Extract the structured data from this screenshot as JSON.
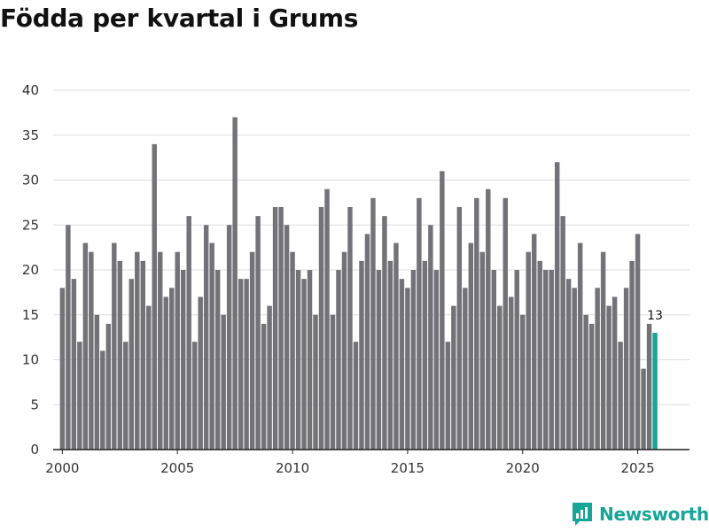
{
  "title": "Födda per kvartal i Grums",
  "brand": {
    "name": "Newsworthy",
    "icon": "newsworthy-logo-icon",
    "color": "#16a596"
  },
  "colors": {
    "bar": "#737278",
    "highlight": "#16a596",
    "grid": "#dddddd",
    "axis": "#222222"
  },
  "chart_data": {
    "type": "bar",
    "title": "Födda per kvartal i Grums",
    "xlabel": "",
    "ylabel": "",
    "x_start": 2000,
    "periods_per_year": 4,
    "xlim": [
      1999.6,
      2027.25
    ],
    "xticks": [
      2000,
      2005,
      2010,
      2015,
      2020,
      2025
    ],
    "ylim": [
      0,
      40
    ],
    "yticks": [
      0,
      5,
      10,
      15,
      20,
      25,
      30,
      35,
      40
    ],
    "grid": true,
    "legend": "none",
    "values": [
      18,
      25,
      19,
      12,
      23,
      22,
      15,
      11,
      14,
      23,
      21,
      12,
      19,
      22,
      21,
      16,
      34,
      22,
      17,
      18,
      22,
      20,
      26,
      12,
      17,
      25,
      23,
      20,
      15,
      25,
      37,
      19,
      19,
      22,
      26,
      14,
      16,
      27,
      27,
      25,
      22,
      20,
      19,
      20,
      15,
      27,
      29,
      15,
      20,
      22,
      27,
      12,
      21,
      24,
      28,
      20,
      26,
      21,
      23,
      19,
      18,
      20,
      28,
      21,
      25,
      20,
      31,
      12,
      16,
      27,
      18,
      23,
      28,
      22,
      29,
      20,
      16,
      28,
      17,
      20,
      15,
      22,
      24,
      21,
      20,
      20,
      32,
      26,
      19,
      18,
      23,
      15,
      14,
      18,
      22,
      16,
      17,
      12,
      18,
      21,
      24,
      9,
      14,
      13
    ],
    "highlight_index": 103,
    "annotations": [
      {
        "index": 103,
        "text": "13"
      }
    ]
  }
}
